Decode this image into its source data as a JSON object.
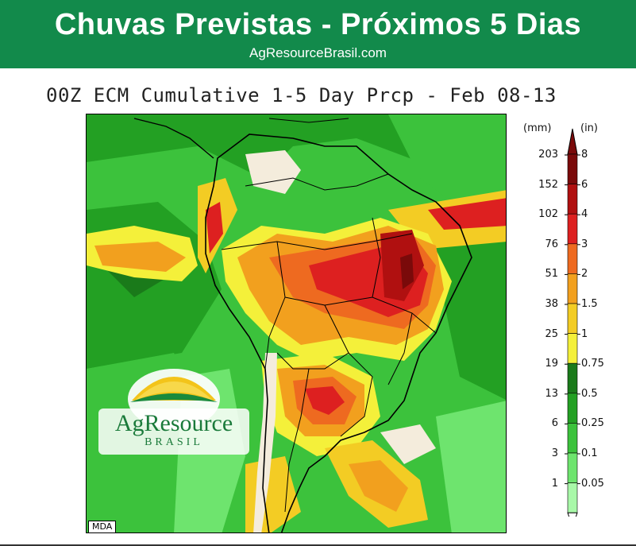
{
  "header": {
    "title": "Chuvas Previstas - Próximos 5 Dias",
    "subtitle": "AgResourceBrasil.com",
    "background_color": "#128a4b"
  },
  "map": {
    "title": "00Z ECM Cumulative 1-5 Day Prcp - Feb 08-13",
    "credit": "MDA",
    "logo": {
      "name": "AgResource",
      "tagline": "BRASIL"
    }
  },
  "legend": {
    "unit_mm": "(mm)",
    "unit_in": "(in)",
    "levels": [
      {
        "mm": "203",
        "in": "8",
        "color": "#7a0a0a"
      },
      {
        "mm": "152",
        "in": "6",
        "color": "#b01010"
      },
      {
        "mm": "102",
        "in": "4",
        "color": "#dd2020"
      },
      {
        "mm": "76",
        "in": "3",
        "color": "#ee6a20"
      },
      {
        "mm": "51",
        "in": "2",
        "color": "#f2a01e"
      },
      {
        "mm": "38",
        "in": "1.5",
        "color": "#f3cc24"
      },
      {
        "mm": "25",
        "in": "1",
        "color": "#f4f03a"
      },
      {
        "mm": "19",
        "in": "0.75",
        "color": "#1a7a1a"
      },
      {
        "mm": "13",
        "in": "0.5",
        "color": "#23a023"
      },
      {
        "mm": "6",
        "in": "0.25",
        "color": "#3cc23c"
      },
      {
        "mm": "3",
        "in": "0.1",
        "color": "#6ee46e"
      },
      {
        "mm": "1",
        "in": "0.05",
        "color": "#a8f8a8"
      }
    ]
  }
}
